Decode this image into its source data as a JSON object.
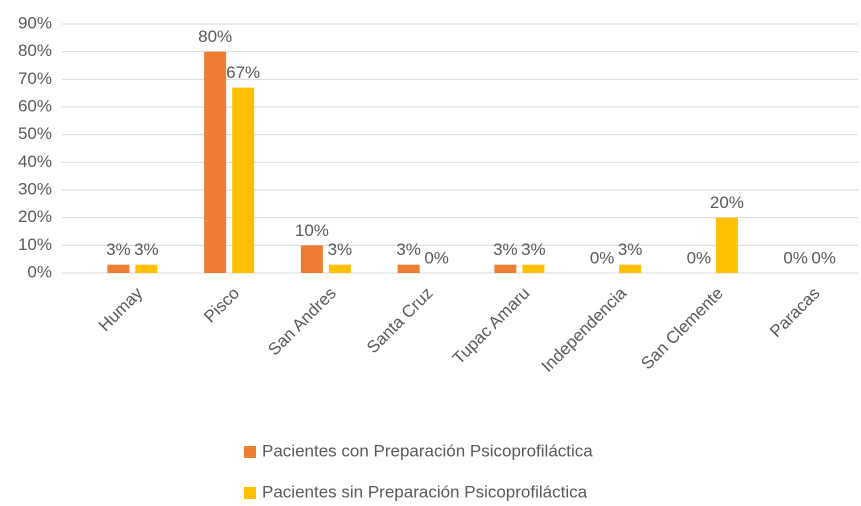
{
  "chart_data": {
    "type": "bar",
    "categories": [
      "Humay",
      "Pisco",
      "San Andres",
      "Santa Cruz",
      "Tupac Amaru",
      "Independencia",
      "San Clemente",
      "Paracas"
    ],
    "series": [
      {
        "name": "Pacientes con Preparación Psicoprofiláctica",
        "color": "#ed7d31",
        "values": [
          3,
          80,
          10,
          3,
          3,
          0,
          0,
          0
        ],
        "value_labels": [
          "3%",
          "80%",
          "10%",
          "3%",
          "3%",
          "0%",
          "0%",
          "0%"
        ]
      },
      {
        "name": "Pacientes sin Preparación Psicoprofiláctica",
        "color": "#ffc000",
        "values": [
          3,
          67,
          3,
          0,
          3,
          3,
          20,
          0
        ],
        "value_labels": [
          "3%",
          "67%",
          "3%",
          "0%",
          "3%",
          "3%",
          "20%",
          "0%"
        ]
      }
    ],
    "ylim": [
      0,
      90
    ],
    "yticks": [
      {
        "value": 0,
        "label": "0%"
      },
      {
        "value": 10,
        "label": "10%"
      },
      {
        "value": 20,
        "label": "20%"
      },
      {
        "value": 30,
        "label": "30%"
      },
      {
        "value": 40,
        "label": "40%"
      },
      {
        "value": 50,
        "label": "50%"
      },
      {
        "value": 60,
        "label": "60%"
      },
      {
        "value": 70,
        "label": "70%"
      },
      {
        "value": 80,
        "label": "80%"
      },
      {
        "value": 90,
        "label": "90%"
      }
    ],
    "grid": true,
    "legend": "bottom"
  }
}
